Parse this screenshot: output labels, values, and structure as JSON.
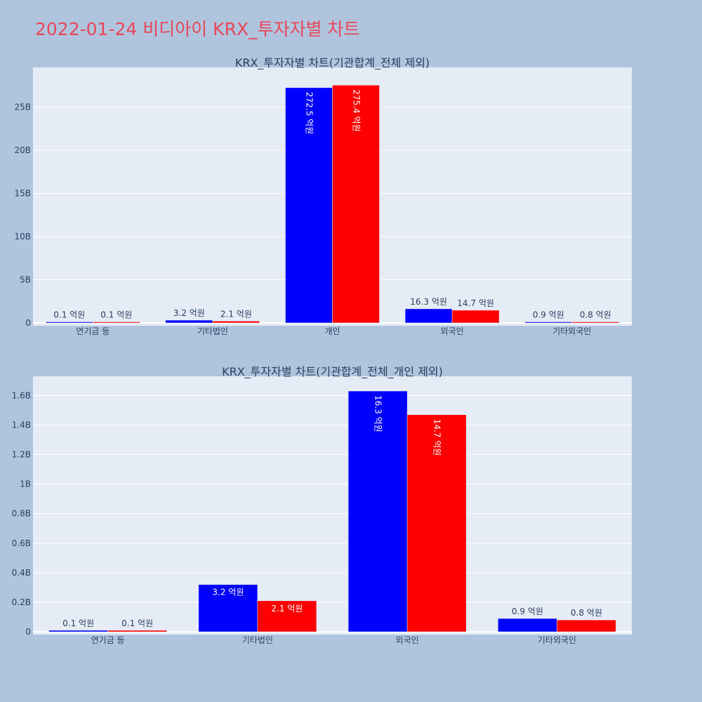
{
  "page_title": "2022-01-24 비디아이 KRX_투자자별 차트",
  "colors": {
    "series_a": "#0000ff",
    "series_b": "#ff0000",
    "plot_bg": "#e5ecf6",
    "page_bg": "#b0c4de",
    "title": "#e8475a"
  },
  "chart_data": [
    {
      "type": "bar",
      "title": "KRX_투자자별 차트(기관합계_전체 제외)",
      "categories": [
        "연기금 등",
        "기타법인",
        "개인",
        "외국인",
        "기타외국인"
      ],
      "series": [
        {
          "values": [
            0.01,
            0.32,
            27.25,
            1.63,
            0.09
          ],
          "labels": [
            "0.1 억원",
            "3.2 억원",
            "272.5 억원",
            "16.3 억원",
            "0.9 억원"
          ]
        },
        {
          "values": [
            0.01,
            0.21,
            27.54,
            1.47,
            0.08
          ],
          "labels": [
            "0.1 억원",
            "2.1 억원",
            "275.4 억원",
            "14.7 억원",
            "0.8 억원"
          ]
        }
      ],
      "y_ticks": [
        {
          "v": 0,
          "label": "0"
        },
        {
          "v": 5,
          "label": "5B"
        },
        {
          "v": 10,
          "label": "10B"
        },
        {
          "v": 15,
          "label": "15B"
        },
        {
          "v": 20,
          "label": "20B"
        },
        {
          "v": 25,
          "label": "25B"
        }
      ],
      "ylim": [
        0,
        29.6
      ],
      "grid": true
    },
    {
      "type": "bar",
      "title": "KRX_투자자별 차트(기관합계_전체_개인 제외)",
      "categories": [
        "연기금 등",
        "기타법인",
        "외국인",
        "기타외국인"
      ],
      "series": [
        {
          "values": [
            0.01,
            0.32,
            1.63,
            0.09
          ],
          "labels": [
            "0.1 억원",
            "3.2 억원",
            "16.3 억원",
            "0.9 억원"
          ]
        },
        {
          "values": [
            0.01,
            0.21,
            1.47,
            0.08
          ],
          "labels": [
            "0.1 억원",
            "2.1 억원",
            "14.7 억원",
            "0.8 억원"
          ]
        }
      ],
      "y_ticks": [
        {
          "v": 0,
          "label": "0"
        },
        {
          "v": 0.2,
          "label": "0.2B"
        },
        {
          "v": 0.4,
          "label": "0.4B"
        },
        {
          "v": 0.6,
          "label": "0.6B"
        },
        {
          "v": 0.8,
          "label": "0.8B"
        },
        {
          "v": 1.0,
          "label": "1B"
        },
        {
          "v": 1.2,
          "label": "1.2B"
        },
        {
          "v": 1.4,
          "label": "1.4B"
        },
        {
          "v": 1.6,
          "label": "1.6B"
        }
      ],
      "ylim": [
        0,
        1.73
      ],
      "grid": true
    }
  ]
}
